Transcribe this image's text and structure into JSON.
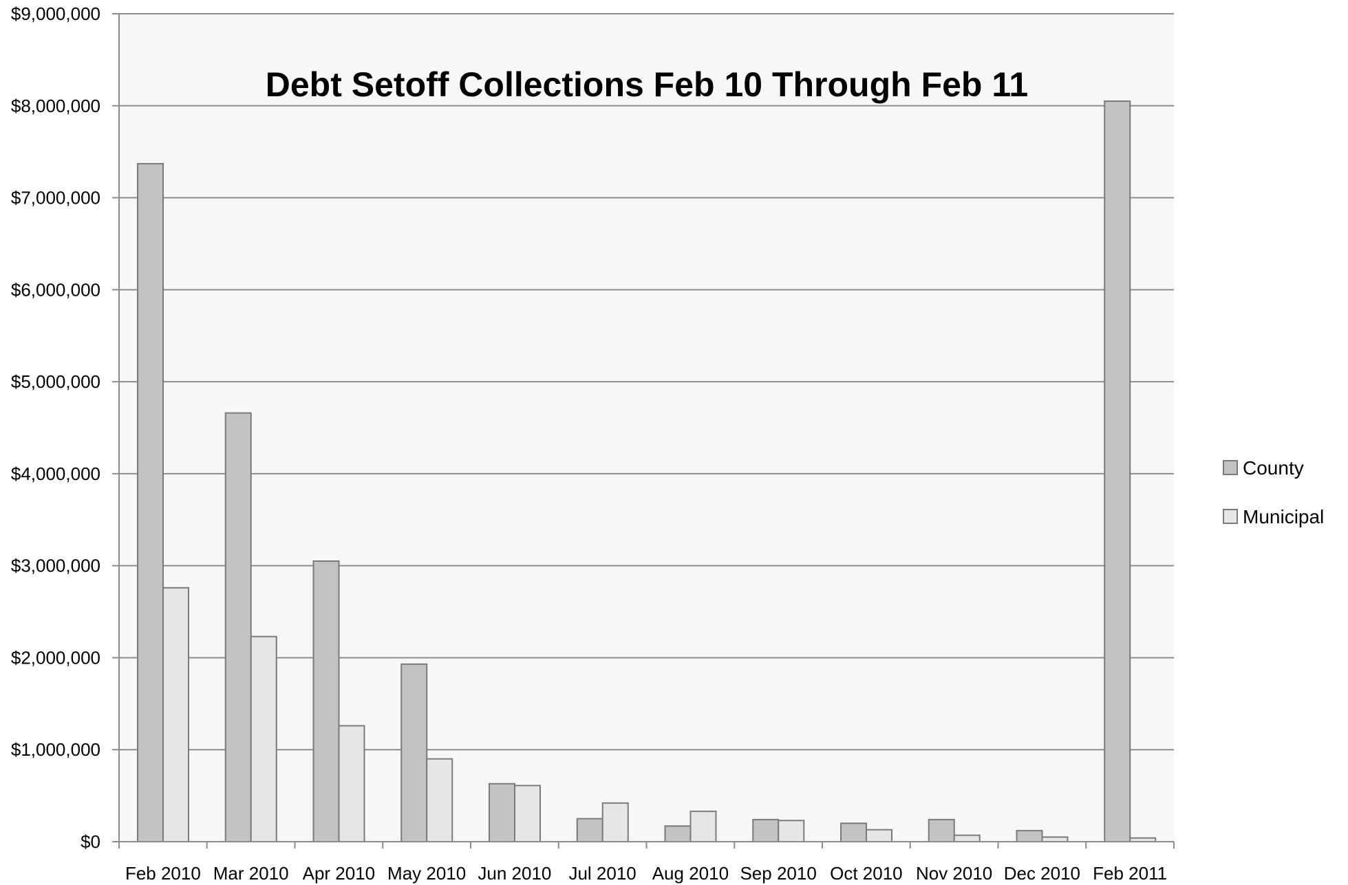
{
  "chart_data": {
    "type": "bar",
    "title": "Debt Setoff Collections Feb 10 Through Feb 11",
    "xlabel": "",
    "ylabel": "",
    "ylim": [
      0,
      9000000
    ],
    "y_ticks": [
      "$0",
      "$1,000,000",
      "$2,000,000",
      "$3,000,000",
      "$4,000,000",
      "$5,000,000",
      "$6,000,000",
      "$7,000,000",
      "$8,000,000",
      "$9,000,000"
    ],
    "categories": [
      "Feb 2010",
      "Mar 2010",
      "Apr 2010",
      "May 2010",
      "Jun 2010",
      "Jul 2010",
      "Aug 2010",
      "Sep 2010",
      "Oct 2010",
      "Nov 2010",
      "Dec 2010",
      "Feb 2011"
    ],
    "series": [
      {
        "name": "County",
        "color": "#c3c3c3",
        "values": [
          7370000,
          4660000,
          3050000,
          1930000,
          630000,
          250000,
          170000,
          240000,
          200000,
          240000,
          120000,
          8050000
        ]
      },
      {
        "name": "Municipal",
        "color": "#e6e6e6",
        "values": [
          2760000,
          2230000,
          1260000,
          900000,
          610000,
          420000,
          330000,
          230000,
          130000,
          70000,
          50000,
          40000
        ]
      }
    ],
    "grid": true,
    "legend_position": "right",
    "plot_background": "#f7f7f7",
    "bar_stroke": "#7a7a7a",
    "grid_color": "#8c8c8c"
  }
}
